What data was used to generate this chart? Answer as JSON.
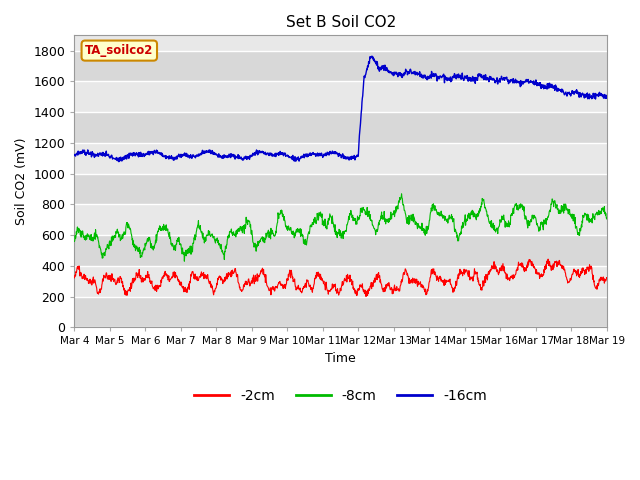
{
  "title": "Set B Soil CO2",
  "ylabel": "Soil CO2 (mV)",
  "xlabel": "Time",
  "tag_label": "TA_soilco2",
  "x_tick_labels": [
    "Mar 4",
    "Mar 5",
    "Mar 6",
    "Mar 7",
    "Mar 8",
    "Mar 9",
    "Mar 10",
    "Mar 11",
    "Mar 12",
    "Mar 13",
    "Mar 14",
    "Mar 15",
    "Mar 16",
    "Mar 17",
    "Mar 18",
    "Mar 19"
  ],
  "ylim": [
    0,
    1900
  ],
  "yticks": [
    0,
    200,
    400,
    600,
    800,
    1000,
    1200,
    1400,
    1600,
    1800
  ],
  "colors": {
    "red": "#ff0000",
    "green": "#00bb00",
    "blue": "#0000cc",
    "tag_bg": "#ffffcc",
    "tag_border": "#cc8800",
    "tag_text": "#cc0000",
    "band_dark": "#d8d8d8",
    "band_light": "#e8e8e8"
  },
  "legend_labels": [
    "-2cm",
    "-8cm",
    "-16cm"
  ],
  "n_points": 1440,
  "seed": 42
}
